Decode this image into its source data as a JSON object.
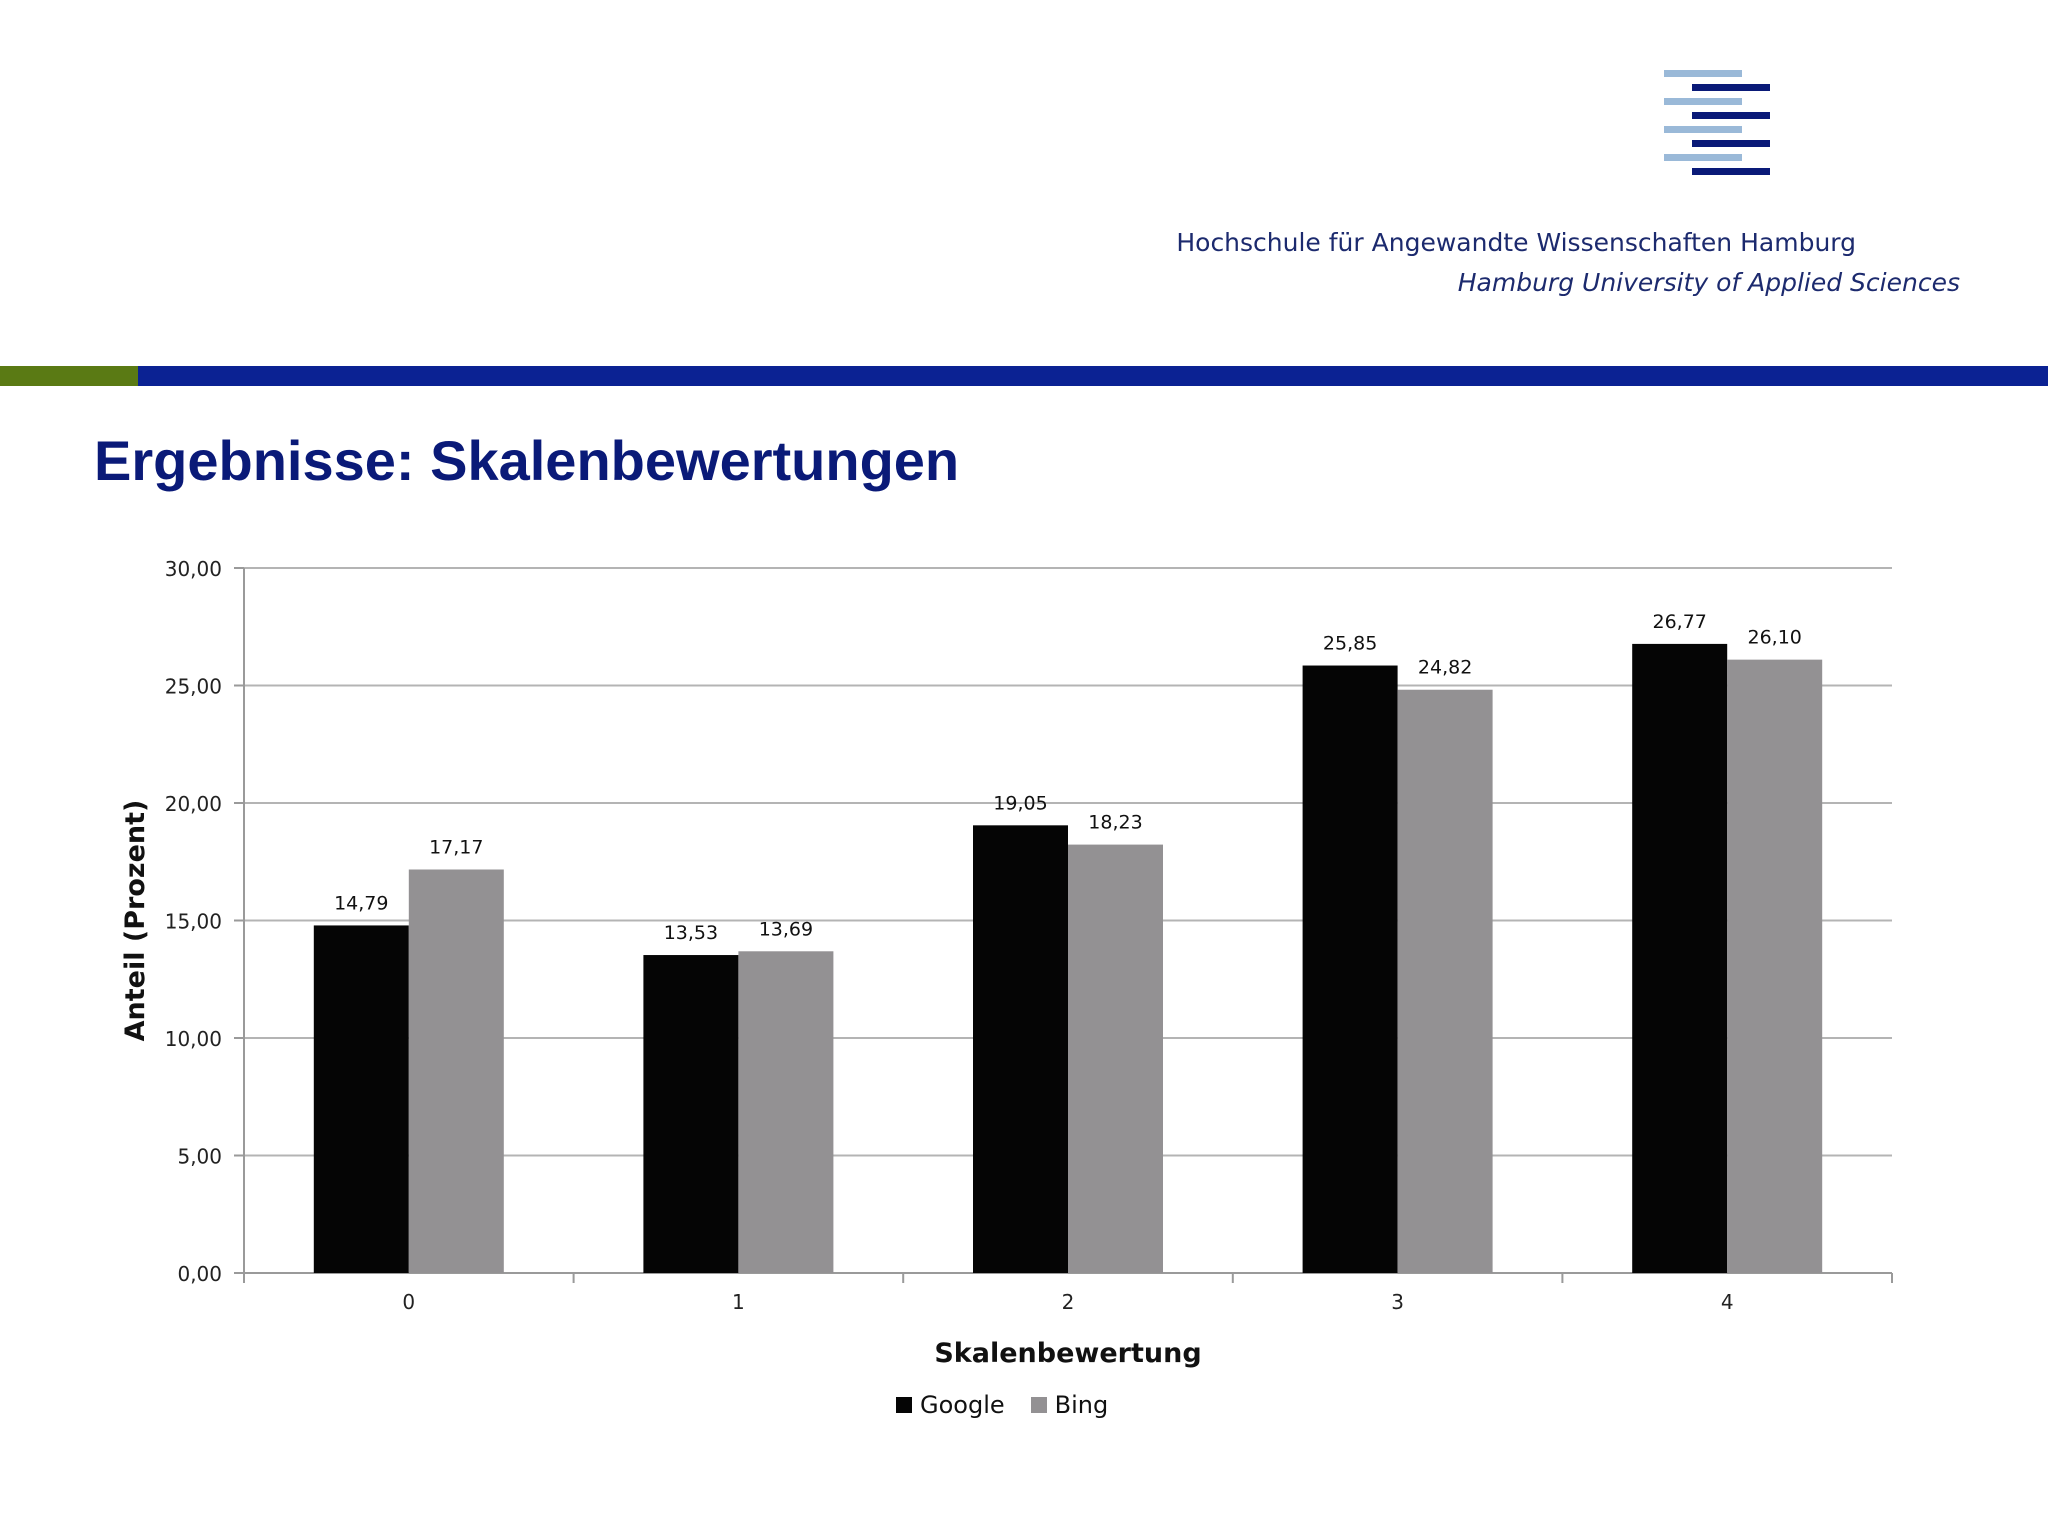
{
  "header": {
    "institution_de": "Hochschule für Angewandte Wissenschaften Hamburg",
    "institution_en": "Hamburg University of Applied Sciences",
    "logo_icon": "haw-hamburg-stripes-logo",
    "colors": {
      "navy": "#0a1a78",
      "light_blue": "#9ab9d8",
      "band_green": "#5a7a14",
      "band_blue": "#0b2293"
    }
  },
  "slide": {
    "title": "Ergebnisse: Skalenbewertungen"
  },
  "chart_data": {
    "type": "bar",
    "title": "",
    "xlabel": "Skalenbewertung",
    "ylabel": "Anteil (Prozent)",
    "categories": [
      "0",
      "1",
      "2",
      "3",
      "4"
    ],
    "ylim": [
      0,
      30
    ],
    "yticks": [
      0,
      5,
      10,
      15,
      20,
      25,
      30
    ],
    "ytick_labels": [
      "0,00",
      "5,00",
      "10,00",
      "15,00",
      "20,00",
      "25,00",
      "30,00"
    ],
    "grid": true,
    "legend_position": "bottom",
    "series": [
      {
        "name": "Google",
        "color": "#050505",
        "values": [
          14.79,
          13.53,
          19.05,
          25.85,
          26.77
        ],
        "labels": [
          "14,79",
          "13,53",
          "19,05",
          "25,85",
          "26,77"
        ]
      },
      {
        "name": "Bing",
        "color": "#939193",
        "values": [
          17.17,
          13.69,
          18.23,
          24.82,
          26.1
        ],
        "labels": [
          "17,17",
          "13,69",
          "18,23",
          "24,82",
          "26,10"
        ]
      }
    ]
  }
}
